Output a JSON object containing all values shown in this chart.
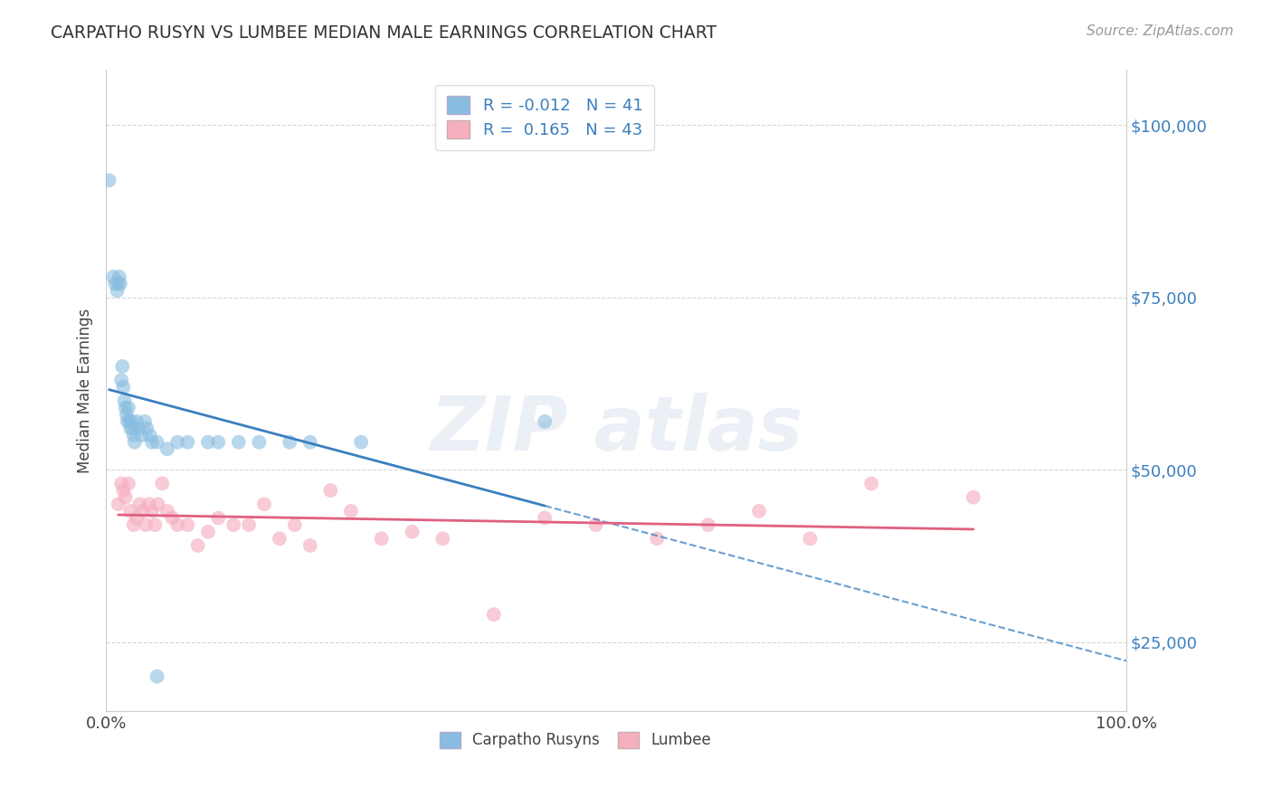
{
  "title": "CARPATHO RUSYN VS LUMBEE MEDIAN MALE EARNINGS CORRELATION CHART",
  "source": "Source: ZipAtlas.com",
  "ylabel": "Median Male Earnings",
  "blue_R": -0.012,
  "blue_N": 41,
  "pink_R": 0.165,
  "pink_N": 43,
  "blue_color": "#89bde0",
  "pink_color": "#f5b0c0",
  "blue_line_color": "#3a7fbf",
  "pink_line_color": "#e06080",
  "xlim": [
    0.0,
    1.0
  ],
  "ylim": [
    15000,
    108000
  ],
  "yticks": [
    25000,
    50000,
    75000,
    100000
  ],
  "ytick_labels": [
    "$25,000",
    "$50,000",
    "$75,000",
    "$100,000"
  ],
  "xticks": [
    0.0,
    1.0
  ],
  "xtick_labels": [
    "0.0%",
    "100.0%"
  ],
  "blue_x": [
    0.003,
    0.007,
    0.009,
    0.011,
    0.012,
    0.013,
    0.014,
    0.015,
    0.016,
    0.017,
    0.018,
    0.019,
    0.02,
    0.021,
    0.022,
    0.023,
    0.024,
    0.025,
    0.026,
    0.027,
    0.028,
    0.03,
    0.032,
    0.035,
    0.038,
    0.04,
    0.043,
    0.045,
    0.05,
    0.06,
    0.07,
    0.08,
    0.1,
    0.11,
    0.13,
    0.15,
    0.18,
    0.2,
    0.25,
    0.43,
    0.05
  ],
  "blue_y": [
    92000,
    78000,
    77000,
    76000,
    77000,
    78000,
    77000,
    63000,
    65000,
    62000,
    60000,
    59000,
    58000,
    57000,
    59000,
    57000,
    56000,
    57000,
    56000,
    55000,
    54000,
    57000,
    56000,
    55000,
    57000,
    56000,
    55000,
    54000,
    54000,
    53000,
    54000,
    54000,
    54000,
    54000,
    54000,
    54000,
    54000,
    54000,
    54000,
    57000,
    20000
  ],
  "pink_x": [
    0.012,
    0.015,
    0.017,
    0.019,
    0.022,
    0.024,
    0.027,
    0.03,
    0.033,
    0.036,
    0.039,
    0.042,
    0.045,
    0.048,
    0.051,
    0.055,
    0.06,
    0.065,
    0.07,
    0.08,
    0.09,
    0.1,
    0.11,
    0.125,
    0.14,
    0.155,
    0.17,
    0.185,
    0.2,
    0.22,
    0.24,
    0.27,
    0.3,
    0.33,
    0.38,
    0.43,
    0.48,
    0.54,
    0.59,
    0.64,
    0.69,
    0.75,
    0.85
  ],
  "pink_y": [
    45000,
    48000,
    47000,
    46000,
    48000,
    44000,
    42000,
    43000,
    45000,
    44000,
    42000,
    45000,
    44000,
    42000,
    45000,
    48000,
    44000,
    43000,
    42000,
    42000,
    39000,
    41000,
    43000,
    42000,
    42000,
    45000,
    40000,
    42000,
    39000,
    47000,
    44000,
    40000,
    41000,
    40000,
    29000,
    43000,
    42000,
    40000,
    42000,
    44000,
    40000,
    48000,
    46000
  ]
}
